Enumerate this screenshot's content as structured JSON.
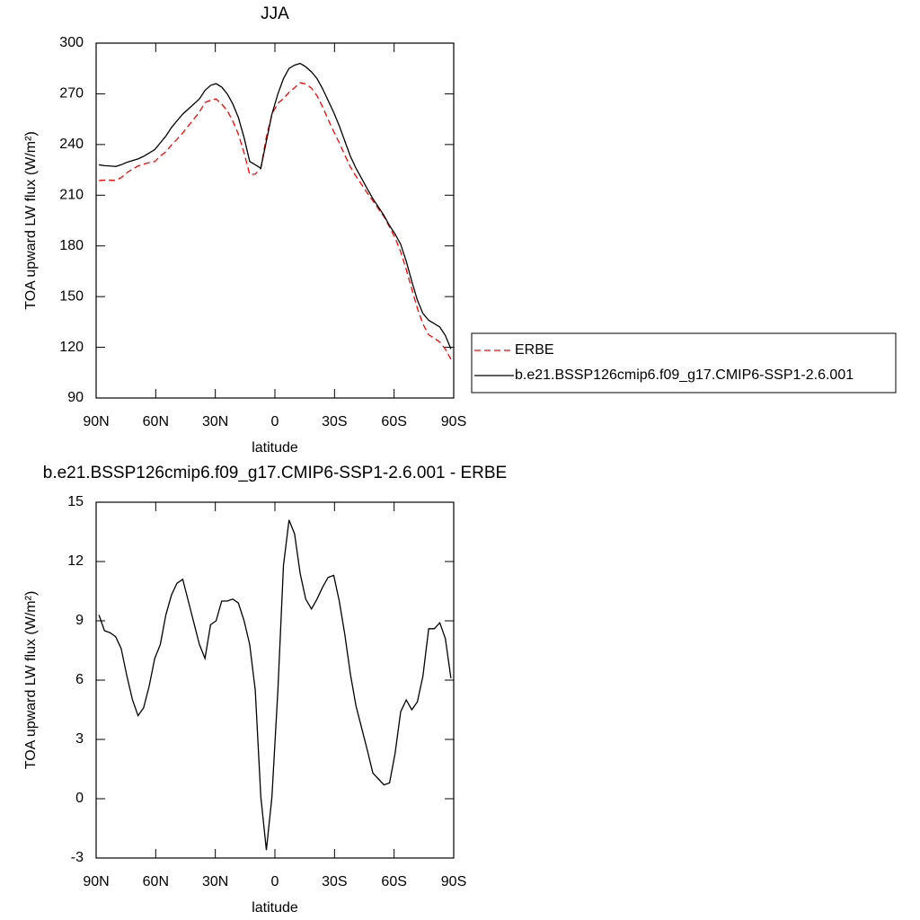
{
  "chart_data": [
    {
      "type": "line",
      "title": "JJA",
      "xlabel": "latitude",
      "ylabel": "TOA upward LW flux (W/m²)",
      "x": [
        88.6,
        85.8,
        83.0,
        80.2,
        77.4,
        74.5,
        71.7,
        68.9,
        66.1,
        63.3,
        60.5,
        57.7,
        54.9,
        52.1,
        49.3,
        46.4,
        43.6,
        40.8,
        38.0,
        35.2,
        32.4,
        29.6,
        26.8,
        24.0,
        21.2,
        18.4,
        15.5,
        12.7,
        9.9,
        7.1,
        4.3,
        1.5,
        -1.5,
        -4.3,
        -7.1,
        -9.9,
        -12.7,
        -15.5,
        -18.4,
        -21.2,
        -24.0,
        -26.8,
        -29.6,
        -32.4,
        -35.2,
        -38.0,
        -40.8,
        -43.6,
        -46.4,
        -49.3,
        -52.1,
        -54.9,
        -57.7,
        -60.5,
        -63.3,
        -66.1,
        -68.9,
        -71.7,
        -74.5,
        -77.4,
        -80.2,
        -83.0,
        -85.8,
        -88.6
      ],
      "series": [
        {
          "name": "ERBE",
          "color": "#ff0000",
          "dash": true,
          "values": [
            218.7,
            219.0,
            218.9,
            218.8,
            220.4,
            223.3,
            225.5,
            227.3,
            228.4,
            229.3,
            229.9,
            233.2,
            235.7,
            239.7,
            243.1,
            246.9,
            251.0,
            255.1,
            259.2,
            264.9,
            266.2,
            267.0,
            264.0,
            260.0,
            253.9,
            246.1,
            235.0,
            222.2,
            222.5,
            225.9,
            244.6,
            257.9,
            264.5,
            267.2,
            270.9,
            273.6,
            276.6,
            275.9,
            273.4,
            268.9,
            262.3,
            254.8,
            247.7,
            241.0,
            233.7,
            226.7,
            221.3,
            216.4,
            211.5,
            206.7,
            202.0,
            197.3,
            191.2,
            184.7,
            176.6,
            166.0,
            154.5,
            143.1,
            133.8,
            127.4,
            125.4,
            123.1,
            118.9,
            112.9
          ]
        },
        {
          "name": "b.e21.BSSP126cmip6.f09_g17.CMIP6-SSP1-2.6.001",
          "color": "#000000",
          "dash": false,
          "values": [
            228,
            227.5,
            227.3,
            227,
            228,
            229.5,
            230.5,
            231.5,
            233,
            235,
            237,
            241,
            245,
            250,
            254,
            258,
            261,
            264,
            267,
            272,
            275,
            276,
            274,
            270,
            264,
            256,
            244,
            230,
            228,
            226,
            242,
            258,
            270,
            279,
            285,
            287,
            288,
            286,
            283,
            279,
            273,
            266,
            259,
            251,
            242,
            233,
            226,
            220,
            214,
            208,
            203,
            198,
            192,
            187,
            181,
            171,
            159,
            148,
            140,
            136,
            134,
            132,
            127,
            119
          ]
        }
      ],
      "xlim": [
        90,
        -90
      ],
      "xticks": [
        {
          "value": 90,
          "label": "90N"
        },
        {
          "value": 60,
          "label": "60N"
        },
        {
          "value": 30,
          "label": "30N"
        },
        0,
        {
          "value": -30,
          "label": "30S"
        },
        {
          "value": -60,
          "label": "60S"
        },
        {
          "value": -90,
          "label": "90S"
        }
      ],
      "ylim": [
        90,
        300
      ],
      "yticks": [
        90,
        120,
        150,
        180,
        210,
        240,
        270,
        300
      ],
      "legend": "right"
    },
    {
      "type": "line",
      "title": "b.e21.BSSP126cmip6.f09_g17.CMIP6-SSP1-2.6.001 - ERBE",
      "xlabel": "latitude",
      "ylabel": "TOA upward LW flux (W/m²)",
      "x": [
        88.6,
        85.8,
        83.0,
        80.2,
        77.4,
        74.5,
        71.7,
        68.9,
        66.1,
        63.3,
        60.5,
        57.7,
        54.9,
        52.1,
        49.3,
        46.4,
        43.6,
        40.8,
        38.0,
        35.2,
        32.4,
        29.6,
        26.8,
        24.0,
        21.2,
        18.4,
        15.5,
        12.7,
        9.9,
        7.1,
        4.3,
        1.5,
        -1.5,
        -4.3,
        -7.1,
        -9.9,
        -12.7,
        -15.5,
        -18.4,
        -21.2,
        -24.0,
        -26.8,
        -29.6,
        -32.4,
        -35.2,
        -38.0,
        -40.8,
        -43.6,
        -46.4,
        -49.3,
        -52.1,
        -54.9,
        -57.7,
        -60.5,
        -63.3,
        -66.1,
        -68.9,
        -71.7,
        -74.5,
        -77.4,
        -80.2,
        -83.0,
        -85.8,
        -88.6
      ],
      "values": [
        9.3,
        8.5,
        8.4,
        8.2,
        7.6,
        6.2,
        5.0,
        4.2,
        4.6,
        5.7,
        7.1,
        7.8,
        9.3,
        10.3,
        10.9,
        11.1,
        10.0,
        8.9,
        7.8,
        7.1,
        8.8,
        9.0,
        10.0,
        10.0,
        10.1,
        9.9,
        9.0,
        7.8,
        5.5,
        0.1,
        -2.6,
        0.1,
        5.5,
        11.8,
        14.1,
        13.4,
        11.4,
        10.1,
        9.6,
        10.1,
        10.7,
        11.2,
        11.3,
        10.0,
        8.3,
        6.3,
        4.7,
        3.6,
        2.5,
        1.3,
        1.0,
        0.7,
        0.8,
        2.3,
        4.4,
        5.0,
        4.5,
        4.9,
        6.2,
        8.6,
        8.6,
        8.9,
        8.1,
        6.1
      ],
      "color": "#000000",
      "xlim": [
        90,
        -90
      ],
      "xticks": [
        {
          "value": 90,
          "label": "90N"
        },
        {
          "value": 60,
          "label": "60N"
        },
        {
          "value": 30,
          "label": "30N"
        },
        0,
        {
          "value": -30,
          "label": "30S"
        },
        {
          "value": -60,
          "label": "60S"
        },
        {
          "value": -90,
          "label": "90S"
        }
      ],
      "ylim": [
        -3,
        15
      ],
      "yticks": [
        -3,
        0,
        3,
        6,
        9,
        12,
        15
      ]
    }
  ]
}
